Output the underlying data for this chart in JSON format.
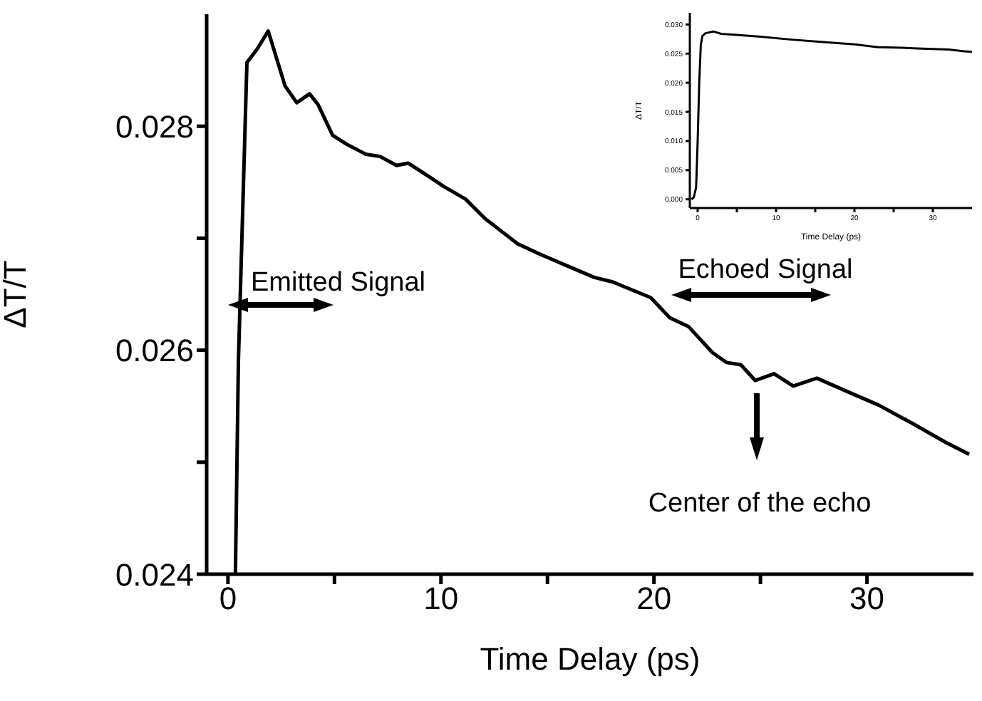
{
  "chart_data": [
    {
      "type": "line",
      "xlabel": "Time Delay (ps)",
      "ylabel": "ΔT/T",
      "color": "#000000",
      "marker": "none",
      "line_style": "solid",
      "x": [
        0.35,
        0.49,
        0.89,
        1.34,
        1.89,
        2.68,
        3.23,
        3.83,
        4.24,
        4.91,
        5.57,
        6.47,
        7.14,
        7.92,
        8.47,
        9.36,
        10.15,
        11.15,
        12.04,
        13.6,
        14.5,
        15.84,
        17.2,
        18.06,
        19.85,
        20.74,
        21.63,
        22.74,
        23.41,
        24.08,
        24.75,
        25.64,
        26.54,
        27.65,
        29.21,
        30.55,
        32.1,
        33.67,
        34.8
      ],
      "values": [
        0.024,
        0.0259,
        0.02857,
        0.02868,
        0.02885,
        0.02836,
        0.02821,
        0.02829,
        0.02819,
        0.02792,
        0.02784,
        0.02775,
        0.02773,
        0.02765,
        0.02767,
        0.02756,
        0.02746,
        0.02735,
        0.02718,
        0.02695,
        0.02687,
        0.02676,
        0.02665,
        0.02661,
        0.02647,
        0.02629,
        0.02621,
        0.02598,
        0.02589,
        0.02587,
        0.02573,
        0.02579,
        0.02568,
        0.02575,
        0.02562,
        0.02551,
        0.02535,
        0.02518,
        0.02507
      ],
      "xlim": [
        -1,
        35
      ],
      "ylim": [
        0.024,
        0.029
      ],
      "xticks": [
        0,
        {
          "value": 5,
          "label": null
        },
        10,
        {
          "value": 15,
          "label": null
        },
        20,
        {
          "value": 25,
          "label": null
        },
        30
      ],
      "yticks": [
        0.024,
        {
          "value": 0.025,
          "label": null
        },
        0.026,
        {
          "value": 0.027,
          "label": null
        },
        0.028
      ],
      "annotations": [
        "Emitted Signal",
        "Echoed Signal",
        "Center of the echo"
      ]
    },
    {
      "type": "line",
      "xlabel": "Time Delay (ps)",
      "ylabel": "ΔT/T",
      "color": "#000000",
      "marker": "none",
      "line_style": "solid",
      "x": [
        -0.8,
        -0.5,
        -0.2,
        0,
        0.2,
        0.4,
        0.6,
        1,
        2,
        3,
        5,
        8,
        12,
        16,
        20,
        23,
        26,
        28,
        32,
        34,
        35
      ],
      "values": [
        0,
        0.0003,
        0.002,
        0.01,
        0.02,
        0.0265,
        0.028,
        0.0285,
        0.0288,
        0.0284,
        0.0282,
        0.0279,
        0.0274,
        0.027,
        0.0266,
        0.0261,
        0.026,
        0.0259,
        0.0257,
        0.0254,
        0.0253
      ],
      "xlim": [
        -1,
        35
      ],
      "ylim": [
        -0.0015,
        0.032
      ],
      "xticks": [
        0,
        {
          "value": 5,
          "label": null
        },
        10,
        {
          "value": 15,
          "label": null
        },
        20,
        {
          "value": 25,
          "label": null
        },
        30
      ],
      "yticks": [
        {
          "value": 0,
          "label": "0.000"
        },
        {
          "value": 0.005,
          "label": "0.005"
        },
        {
          "value": 0.01,
          "label": "0.010"
        },
        {
          "value": 0.015,
          "label": "0.015"
        },
        {
          "value": 0.02,
          "label": "0.020"
        },
        {
          "value": 0.025,
          "label": "0.025"
        },
        {
          "value": 0.03,
          "label": "0.030"
        }
      ]
    }
  ]
}
